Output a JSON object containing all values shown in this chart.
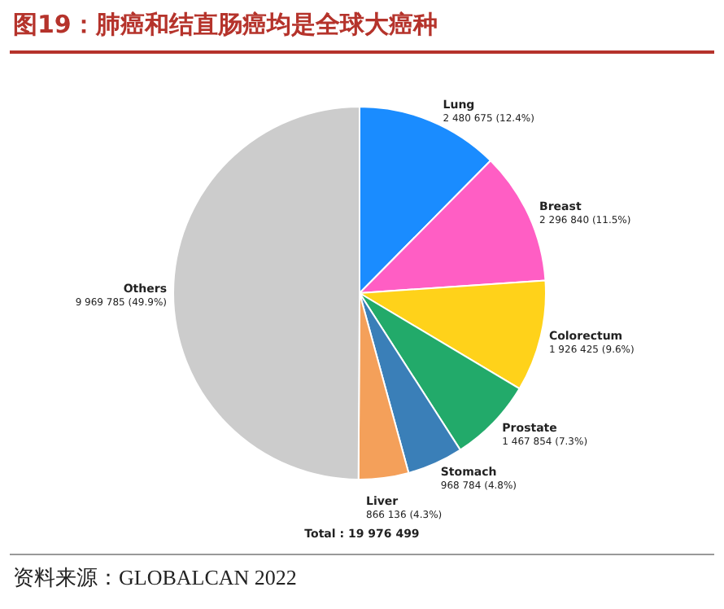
{
  "chart_data": {
    "type": "pie",
    "title": "图19：肺癌和结直肠癌均是全球大癌种",
    "categories": [
      "Lung",
      "Breast",
      "Colorectum",
      "Prostate",
      "Stomach",
      "Liver",
      "Others"
    ],
    "values": [
      2480675,
      2296840,
      1926425,
      1467854,
      968784,
      866136,
      9969785
    ],
    "colors": [
      "#1a8cff",
      "#ff5ec4",
      "#ffd21a",
      "#22aa6a",
      "#3a7fb8",
      "#f4a05a",
      "#cccccc"
    ],
    "value_labels": [
      "2 480 675 (12.4%)",
      "2 296 840 (11.5%)",
      "1 926 425 (9.6%)",
      "1 467 854 (7.3%)",
      "968 784 (4.8%)",
      "866 136 (4.3%)",
      "9 969 785 (49.9%)"
    ],
    "annotations": [
      "Total : 19 976 499",
      "资料来源：GLOBALCAN 2022"
    ]
  }
}
